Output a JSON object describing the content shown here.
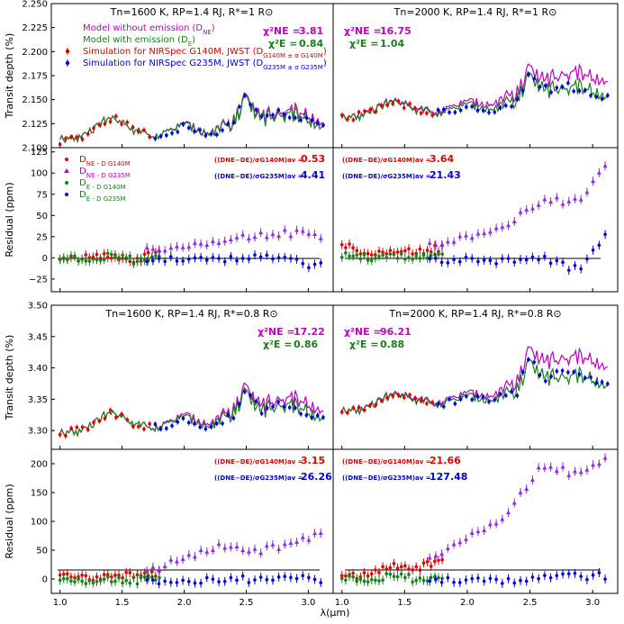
{
  "colors": {
    "model_ne": "#c000c0",
    "model_e": "#1a7f1a",
    "sim_g140": "#e00000",
    "sim_g235": "#0000e0",
    "resid_ne": "#8a2be2",
    "resid_e": "#1a7f1a",
    "axis": "#000000"
  },
  "figure": {
    "xlabel": "λ(μm)",
    "ylabel_depth": "Transit depth (%)",
    "ylabel_resid": "Residual (ppm)",
    "x_ticks": [
      "1.0",
      "1.5",
      "2.0",
      "2.5",
      "3.0"
    ]
  },
  "legend_top": {
    "model_ne": "Model without emission (D",
    "model_ne_sub": "NE",
    "model_e": "Model with emission (D",
    "model_e_sub": "E",
    "sim_g140": "Simulation for NIRSpec G140M, JWST (D",
    "sim_g140_sub": "G140M ± σ G140M",
    "sim_g235": "Simulation for NIRSpec G235M, JWST (D",
    "sim_g235_sub": "G235M ± σ G235M"
  },
  "legend_resid": {
    "r1": "D",
    "r1_sub": "NE - D G140M",
    "r2": "D",
    "r2_sub": "NE - D G235M",
    "r3": "D",
    "r3_sub": "E - D G140M",
    "r4": "D",
    "r4_sub": "E - D G235M"
  },
  "panels": {
    "tl": {
      "title": "Tn=1600 K, RP=1.4 RJ, R*=1 R⊙",
      "chi_ne": "3.81",
      "chi_e": "0.84"
    },
    "tr": {
      "title": "Tn=2000 K, RP=1.4 RJ, R*=1 R⊙",
      "chi_ne": "16.75",
      "chi_e": "1.04"
    },
    "ml": {
      "g140": "0.53",
      "g235": "4.41"
    },
    "mr": {
      "g140": "3.64",
      "g235": "21.43"
    },
    "bl": {
      "title": "Tn=1600 K, RP=1.4 RJ, R*=0.8 R⊙",
      "chi_ne": "17.22",
      "chi_e": "0.86"
    },
    "br": {
      "title": "Tn=2000 K, RP=1.4 RJ, R*=0.8 R⊙",
      "chi_ne": "96.21",
      "chi_e": "0.88"
    },
    "rl": {
      "g140": "3.15",
      "g235": "26.26"
    },
    "rr": {
      "g140": "21.66",
      "g235": "127.48"
    }
  },
  "chart_data": [
    {
      "type": "line",
      "title": "Tn=1600 K, RP=1.4 RJ, R*=1 R⊙",
      "ylabel": "Transit depth (%)",
      "ylim": [
        2.1,
        2.25
      ],
      "yticks": [
        "2.100",
        "2.125",
        "2.150",
        "2.175",
        "2.200",
        "2.225",
        "2.250"
      ],
      "series": [
        {
          "name": "Model without emission (D NE)",
          "x": [
            1.0,
            1.2,
            1.4,
            1.6,
            1.8,
            2.0,
            2.2,
            2.4,
            2.5,
            2.6,
            2.8,
            3.0,
            3.1
          ],
          "values": [
            2.108,
            2.112,
            2.132,
            2.118,
            2.112,
            2.125,
            2.115,
            2.125,
            2.16,
            2.132,
            2.14,
            2.132,
            2.125
          ]
        },
        {
          "name": "Model with emission (D E)",
          "x": [
            1.0,
            1.2,
            1.4,
            1.6,
            1.8,
            2.0,
            2.2,
            2.4,
            2.5,
            2.6,
            2.8,
            3.0,
            3.1
          ],
          "values": [
            2.108,
            2.112,
            2.132,
            2.118,
            2.112,
            2.124,
            2.114,
            2.124,
            2.158,
            2.13,
            2.137,
            2.128,
            2.121
          ]
        }
      ]
    },
    {
      "type": "line",
      "title": "Tn=2000 K, RP=1.4 RJ, R*=1 R⊙",
      "ylim": [
        2.1,
        2.25
      ],
      "series": [
        {
          "name": "Model without emission (D NE)",
          "x": [
            1.0,
            1.2,
            1.4,
            1.6,
            1.8,
            2.0,
            2.2,
            2.4,
            2.5,
            2.6,
            2.8,
            3.0,
            3.1
          ],
          "values": [
            2.13,
            2.135,
            2.15,
            2.14,
            2.138,
            2.148,
            2.145,
            2.155,
            2.19,
            2.17,
            2.18,
            2.172,
            2.168
          ]
        },
        {
          "name": "Model with emission (D E)",
          "x": [
            1.0,
            1.2,
            1.4,
            1.6,
            1.8,
            2.0,
            2.2,
            2.4,
            2.5,
            2.6,
            2.8,
            3.0,
            3.1
          ],
          "values": [
            2.13,
            2.134,
            2.149,
            2.139,
            2.136,
            2.145,
            2.14,
            2.148,
            2.182,
            2.16,
            2.165,
            2.158,
            2.152
          ]
        }
      ]
    },
    {
      "type": "scatter",
      "ylabel": "Residual (ppm)",
      "ylim": [
        -40,
        130
      ],
      "yticks": [
        "−25",
        "0",
        "25",
        "50",
        "75",
        "100",
        "125"
      ],
      "series": [
        {
          "name": "D NE - D G140M",
          "x": [
            1.0,
            1.2,
            1.4,
            1.6,
            1.8
          ],
          "values": [
            2,
            0,
            3,
            -2,
            5
          ]
        },
        {
          "name": "D NE - D G235M",
          "x": [
            1.7,
            2.0,
            2.3,
            2.6,
            2.9,
            3.1
          ],
          "values": [
            8,
            15,
            22,
            28,
            30,
            25
          ]
        },
        {
          "name": "D E - D G140M",
          "x": [
            1.0,
            1.2,
            1.4,
            1.6,
            1.8
          ],
          "values": [
            1,
            -1,
            2,
            -3,
            3
          ]
        },
        {
          "name": "D E - D G235M",
          "x": [
            1.7,
            2.0,
            2.3,
            2.6,
            2.9,
            3.1
          ],
          "values": [
            -5,
            0,
            -3,
            2,
            -5,
            -10
          ]
        }
      ]
    },
    {
      "type": "scatter",
      "ylim": [
        -40,
        130
      ],
      "series": [
        {
          "name": "D NE - D G140M",
          "x": [
            1.0,
            1.2,
            1.4,
            1.6,
            1.8
          ],
          "values": [
            15,
            5,
            10,
            8,
            12
          ]
        },
        {
          "name": "D NE - D G235M",
          "x": [
            1.7,
            2.0,
            2.3,
            2.6,
            2.9,
            3.1
          ],
          "values": [
            15,
            25,
            40,
            65,
            70,
            110
          ]
        },
        {
          "name": "D E - D G140M",
          "x": [
            1.0,
            1.2,
            1.4,
            1.6,
            1.8
          ],
          "values": [
            2,
            0,
            2,
            0,
            1
          ]
        },
        {
          "name": "D E - D G235M",
          "x": [
            1.7,
            2.0,
            2.3,
            2.6,
            2.9,
            3.1
          ],
          "values": [
            -5,
            0,
            -5,
            0,
            -15,
            28
          ]
        }
      ]
    },
    {
      "type": "line",
      "title": "Tn=1600 K, RP=1.4 RJ, R*=0.8 R⊙",
      "ylabel": "Transit depth (%)",
      "ylim": [
        3.27,
        3.5
      ],
      "yticks": [
        "3.30",
        "3.35",
        "3.40",
        "3.45",
        "3.50"
      ],
      "series": [
        {
          "name": "Model without emission (D NE)",
          "x": [
            1.0,
            1.2,
            1.4,
            1.6,
            1.8,
            2.0,
            2.2,
            2.4,
            2.5,
            2.6,
            2.8,
            3.0,
            3.1
          ],
          "values": [
            3.295,
            3.3,
            3.33,
            3.31,
            3.305,
            3.325,
            3.31,
            3.33,
            3.38,
            3.34,
            3.355,
            3.34,
            3.33
          ]
        },
        {
          "name": "Model with emission (D E)",
          "x": [
            1.0,
            1.2,
            1.4,
            1.6,
            1.8,
            2.0,
            2.2,
            2.4,
            2.5,
            2.6,
            2.8,
            3.0,
            3.1
          ],
          "values": [
            3.295,
            3.3,
            3.33,
            3.31,
            3.304,
            3.322,
            3.306,
            3.325,
            3.372,
            3.332,
            3.345,
            3.328,
            3.318
          ]
        }
      ]
    },
    {
      "type": "line",
      "title": "Tn=2000 K, RP=1.4 RJ, R*=0.8 R⊙",
      "ylim": [
        3.27,
        3.5
      ],
      "series": [
        {
          "name": "Model without emission (D NE)",
          "x": [
            1.0,
            1.2,
            1.4,
            1.6,
            1.8,
            2.0,
            2.2,
            2.4,
            2.5,
            2.6,
            2.8,
            3.0,
            3.1
          ],
          "values": [
            3.33,
            3.335,
            3.36,
            3.35,
            3.345,
            3.36,
            3.355,
            3.375,
            3.44,
            3.41,
            3.42,
            3.41,
            3.4
          ]
        },
        {
          "name": "Model with emission (D E)",
          "x": [
            1.0,
            1.2,
            1.4,
            1.6,
            1.8,
            2.0,
            2.2,
            2.4,
            2.5,
            2.6,
            2.8,
            3.0,
            3.1
          ],
          "values": [
            3.33,
            3.334,
            3.358,
            3.348,
            3.342,
            3.355,
            3.348,
            3.362,
            3.42,
            3.385,
            3.39,
            3.38,
            3.37
          ]
        }
      ]
    },
    {
      "type": "scatter",
      "ylabel": "Residual (ppm)",
      "ylim": [
        -25,
        225
      ],
      "yticks": [
        "0",
        "50",
        "100",
        "150",
        "200"
      ],
      "series": [
        {
          "name": "D NE - D G140M",
          "x": [
            1.0,
            1.2,
            1.4,
            1.6,
            1.8
          ],
          "values": [
            5,
            0,
            8,
            5,
            10
          ]
        },
        {
          "name": "D NE - D G235M",
          "x": [
            1.7,
            2.0,
            2.3,
            2.6,
            2.9,
            3.1
          ],
          "values": [
            15,
            35,
            60,
            50,
            60,
            85
          ]
        },
        {
          "name": "D E - D G140M",
          "x": [
            1.0,
            1.2,
            1.4,
            1.6,
            1.8
          ],
          "values": [
            2,
            -2,
            1,
            -3,
            2
          ]
        },
        {
          "name": "D E - D G235M",
          "x": [
            1.7,
            2.0,
            2.3,
            2.6,
            2.9,
            3.1
          ],
          "values": [
            -5,
            0,
            -5,
            2,
            5,
            0
          ]
        }
      ]
    },
    {
      "type": "scatter",
      "ylim": [
        -25,
        225
      ],
      "series": [
        {
          "name": "D NE - D G140M",
          "x": [
            1.0,
            1.2,
            1.4,
            1.6,
            1.8
          ],
          "values": [
            10,
            5,
            25,
            20,
            30
          ]
        },
        {
          "name": "D NE - D G235M",
          "x": [
            1.7,
            2.0,
            2.3,
            2.6,
            2.9,
            3.1
          ],
          "values": [
            35,
            75,
            110,
            200,
            180,
            210
          ]
        },
        {
          "name": "D E - D G140M",
          "x": [
            1.0,
            1.2,
            1.4,
            1.6,
            1.8
          ],
          "values": [
            2,
            0,
            5,
            0,
            5
          ]
        },
        {
          "name": "D E - D G235M",
          "x": [
            1.7,
            2.0,
            2.3,
            2.6,
            2.9,
            3.1
          ],
          "values": [
            -5,
            0,
            -5,
            2,
            5,
            5
          ]
        }
      ]
    }
  ]
}
